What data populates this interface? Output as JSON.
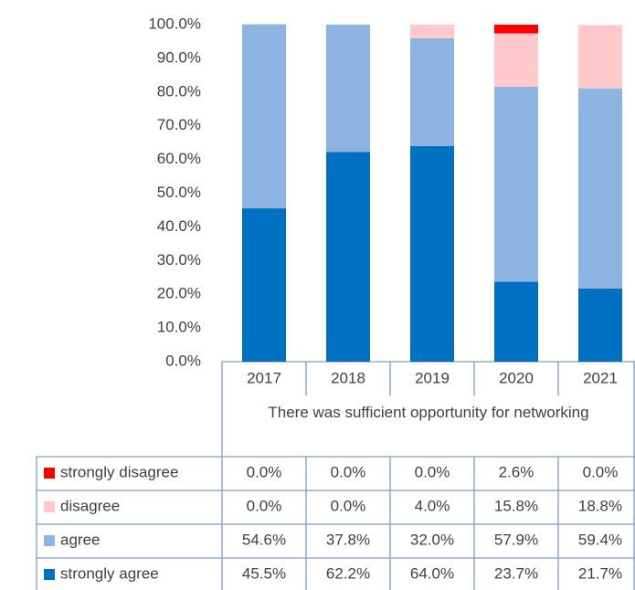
{
  "chart_data": {
    "type": "stacked_bar",
    "x_label": "There was sufficient opportunity for networking",
    "categories": [
      "2017",
      "2018",
      "2019",
      "2020",
      "2021"
    ],
    "series": [
      {
        "name": "strongly disagree",
        "color": "#ff0000",
        "values": [
          0,
          0,
          0,
          2.6,
          0
        ],
        "value_labels": [
          "0.0%",
          "0.0%",
          "0.0%",
          "2.6%",
          "0.0%"
        ]
      },
      {
        "name": "disagree",
        "color": "#ffc9cc",
        "values": [
          0,
          0,
          4.0,
          15.8,
          18.8
        ],
        "value_labels": [
          "0.0%",
          "0.0%",
          "4.0%",
          "15.8%",
          "18.8%"
        ]
      },
      {
        "name": "agree",
        "color": "#8db3e2",
        "values": [
          54.6,
          37.8,
          32.0,
          57.9,
          59.4
        ],
        "value_labels": [
          "54.6%",
          "37.8%",
          "32.0%",
          "57.9%",
          "59.4%"
        ]
      },
      {
        "name": "strongly agree",
        "color": "#0070c0",
        "values": [
          45.5,
          62.2,
          64.0,
          23.7,
          21.7
        ],
        "value_labels": [
          "45.5%",
          "62.2%",
          "64.0%",
          "23.7%",
          "21.7%"
        ]
      }
    ],
    "ylim": [
      0,
      100
    ],
    "yticks": [
      {
        "value": 0,
        "label": "0.0%"
      },
      {
        "value": 10,
        "label": "10.0%"
      },
      {
        "value": 20,
        "label": "20.0%"
      },
      {
        "value": 30,
        "label": "30.0%"
      },
      {
        "value": 40,
        "label": "40.0%"
      },
      {
        "value": 50,
        "label": "50.0%"
      },
      {
        "value": 60,
        "label": "60.0%"
      },
      {
        "value": 70,
        "label": "70.0%"
      },
      {
        "value": 80,
        "label": "80.0%"
      },
      {
        "value": 90,
        "label": "90.0%"
      },
      {
        "value": 100,
        "label": "100.0%"
      }
    ],
    "grid": false
  }
}
